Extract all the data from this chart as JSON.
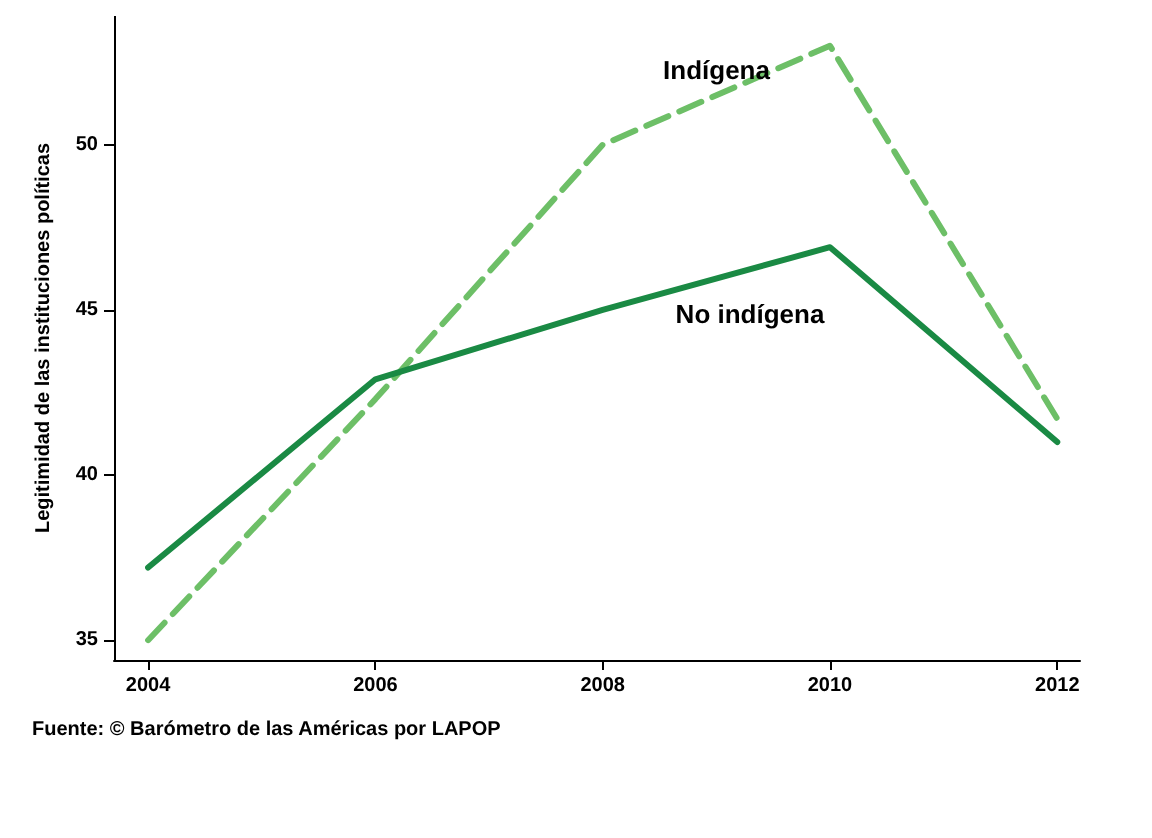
{
  "chart_data": {
    "type": "line",
    "ylabel": "Legitimidad de las instituciones políticas",
    "x": [
      2004,
      2006,
      2008,
      2010,
      2012
    ],
    "series": [
      {
        "name": "Indígena",
        "color": "#6dbf67",
        "line_style": "dashed",
        "values": [
          35.0,
          42.3,
          50.0,
          53.0,
          41.7
        ]
      },
      {
        "name": "No indígena",
        "color": "#1a8a44",
        "line_style": "solid",
        "values": [
          37.2,
          42.9,
          45.0,
          46.9,
          41.0
        ]
      }
    ],
    "xlim": [
      2003.7,
      2012.2
    ],
    "xticks": [
      2004,
      2006,
      2008,
      2010,
      2012
    ],
    "ylim": [
      34.4,
      53.9
    ],
    "yticks": [
      35,
      40,
      45,
      50
    ],
    "grid": false,
    "legend": false,
    "marker": "none",
    "annotations": [
      "Fuente: © Barómetro de las Américas por LAPOP"
    ]
  }
}
